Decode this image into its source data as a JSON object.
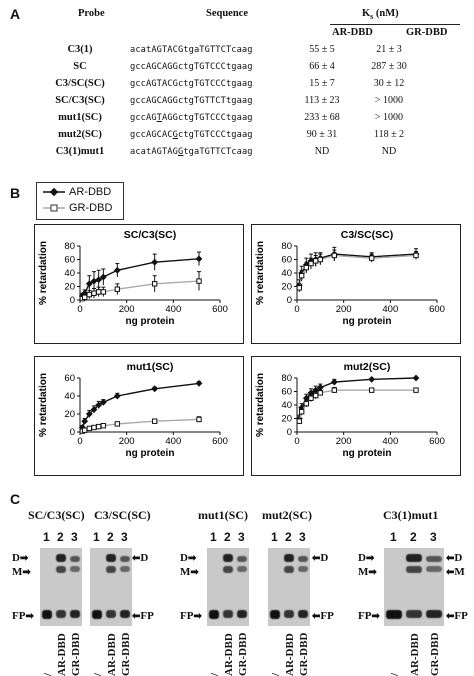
{
  "panel_a": {
    "letter": "A",
    "headers": {
      "probe": "Probe",
      "sequence": "Sequence",
      "kd": "K",
      "kd_sub": "s",
      "kd_unit": " (nM)",
      "ar": "AR-DBD",
      "gr": "GR-DBD"
    },
    "rows": [
      {
        "probe": "C3(1)",
        "seq_pre": "acatAGTACGtgaTGTTCTcaag",
        "seq_u": "",
        "seq_post": "",
        "ar": "55 ± 5",
        "gr": "21 ± 3"
      },
      {
        "probe": "SC",
        "seq_pre": "gccAGCAGGctgTGTCCCtgaag",
        "seq_u": "",
        "seq_post": "",
        "ar": "66 ± 4",
        "gr": "287 ± 30"
      },
      {
        "probe": "C3/SC(SC)",
        "seq_pre": "gccAGTACGctgTGTCCCtgaag",
        "seq_u": "",
        "seq_post": "",
        "ar": "15 ± 7",
        "gr": "30 ± 12"
      },
      {
        "probe": "SC/C3(SC)",
        "seq_pre": "gccAGCAGGctgTGTTCTtgaag",
        "seq_u": "",
        "seq_post": "",
        "ar": "113 ± 23",
        "gr": "> 1000"
      },
      {
        "probe": "mut1(SC)",
        "seq_pre": "gccAG",
        "seq_u": "T",
        "seq_post": "AGGctgTGTCCCtgaag",
        "ar": "233 ± 68",
        "gr": "> 1000"
      },
      {
        "probe": "mut2(SC)",
        "seq_pre": "gccAGCAC",
        "seq_u": "G",
        "seq_post": "ctgTGTCCCtgaag",
        "ar": "90 ± 31",
        "gr": "118 ± 2"
      },
      {
        "probe": "C3(1)mut1",
        "seq_pre": "acatAGTAG",
        "seq_u": "G",
        "seq_post": "tgaTGTTCTcaag",
        "ar": "ND",
        "gr": "ND"
      }
    ]
  },
  "panel_b": {
    "letter": "B",
    "legend": {
      "ar": "AR-DBD",
      "gr": "GR-DBD"
    },
    "colors": {
      "ar": "#111111",
      "gr": "#aaaaaa"
    }
  },
  "chart_data": [
    {
      "type": "line",
      "title": "SC/C3(SC)",
      "xlabel": "ng protein",
      "ylabel": "% retardation",
      "xlim": [
        0,
        600
      ],
      "ylim": [
        0,
        80
      ],
      "xticks": [
        0,
        200,
        400,
        600
      ],
      "yticks": [
        0,
        20,
        40,
        60,
        80
      ],
      "series": [
        {
          "name": "AR-DBD",
          "x": [
            10,
            20,
            40,
            60,
            80,
            100,
            160,
            320,
            510
          ],
          "y": [
            6,
            10,
            24,
            28,
            30,
            34,
            44,
            56,
            61
          ],
          "err": [
            4,
            5,
            12,
            14,
            14,
            12,
            10,
            12,
            10
          ]
        },
        {
          "name": "GR-DBD",
          "x": [
            10,
            20,
            40,
            60,
            80,
            100,
            160,
            320,
            510
          ],
          "y": [
            2,
            4,
            8,
            10,
            12,
            12,
            16,
            24,
            28
          ],
          "err": [
            2,
            3,
            6,
            7,
            7,
            7,
            8,
            12,
            14
          ]
        }
      ]
    },
    {
      "type": "line",
      "title": "C3/SC(SC)",
      "xlabel": "ng protein",
      "ylabel": "% retardation",
      "xlim": [
        0,
        600
      ],
      "ylim": [
        0,
        80
      ],
      "xticks": [
        0,
        200,
        400,
        600
      ],
      "yticks": [
        0,
        20,
        40,
        60,
        80
      ],
      "series": [
        {
          "name": "AR-DBD",
          "x": [
            10,
            20,
            40,
            60,
            80,
            100,
            160,
            320,
            510
          ],
          "y": [
            22,
            40,
            52,
            58,
            60,
            62,
            68,
            64,
            68
          ],
          "err": [
            8,
            10,
            10,
            10,
            10,
            8,
            10,
            6,
            8
          ]
        },
        {
          "name": "GR-DBD",
          "x": [
            10,
            20,
            40,
            60,
            80,
            100,
            160,
            320,
            510
          ],
          "y": [
            18,
            36,
            48,
            54,
            58,
            60,
            66,
            62,
            66
          ],
          "err": [
            6,
            8,
            8,
            8,
            8,
            8,
            8,
            6,
            6
          ]
        }
      ]
    },
    {
      "type": "line",
      "title": "mut1(SC)",
      "xlabel": "ng protein",
      "ylabel": "% retardation",
      "xlim": [
        0,
        600
      ],
      "ylim": [
        0,
        60
      ],
      "xticks": [
        0,
        200,
        400,
        600
      ],
      "yticks": [
        0,
        20,
        40,
        60
      ],
      "series": [
        {
          "name": "AR-DBD",
          "x": [
            10,
            20,
            40,
            60,
            80,
            100,
            160,
            320,
            510
          ],
          "y": [
            5,
            12,
            20,
            25,
            30,
            33,
            40,
            48,
            54
          ],
          "err": [
            2,
            3,
            4,
            4,
            4,
            3,
            3,
            2,
            2
          ]
        },
        {
          "name": "GR-DBD",
          "x": [
            10,
            20,
            40,
            60,
            80,
            100,
            160,
            320,
            510
          ],
          "y": [
            1,
            2,
            4,
            5,
            6,
            7,
            9,
            12,
            14
          ],
          "err": [
            1,
            1,
            1,
            1,
            1,
            1,
            2,
            2,
            3
          ]
        }
      ]
    },
    {
      "type": "line",
      "title": "mut2(SC)",
      "xlabel": "ng protein",
      "ylabel": "% retardation",
      "xlim": [
        0,
        600
      ],
      "ylim": [
        0,
        80
      ],
      "xticks": [
        0,
        200,
        400,
        600
      ],
      "yticks": [
        0,
        20,
        40,
        60,
        80
      ],
      "series": [
        {
          "name": "AR-DBD",
          "x": [
            10,
            20,
            40,
            60,
            80,
            100,
            160,
            320,
            510
          ],
          "y": [
            20,
            36,
            50,
            58,
            62,
            66,
            74,
            78,
            80
          ],
          "err": [
            5,
            6,
            6,
            6,
            6,
            5,
            4,
            3,
            3
          ]
        },
        {
          "name": "GR-DBD",
          "x": [
            10,
            20,
            40,
            60,
            80,
            100,
            160,
            320,
            510
          ],
          "y": [
            16,
            30,
            42,
            50,
            54,
            58,
            62,
            62,
            62
          ],
          "err": [
            4,
            5,
            5,
            5,
            5,
            4,
            4,
            3,
            3
          ]
        }
      ]
    }
  ],
  "panel_c": {
    "letter": "C",
    "groups": [
      {
        "titles": [
          "SC/C3(SC)",
          "C3/SC(SC)"
        ]
      },
      {
        "titles": [
          "mut1(SC)",
          "mut2(SC)"
        ]
      },
      {
        "titles": [
          "C3(1)mut1"
        ]
      }
    ],
    "lanes": [
      "1",
      "2",
      "3"
    ],
    "bands": {
      "d": "D",
      "m": "M",
      "fp": "FP"
    },
    "lane_labels": {
      "none": "/",
      "ar": "AR-DBD",
      "gr": "GR-DBD"
    }
  }
}
